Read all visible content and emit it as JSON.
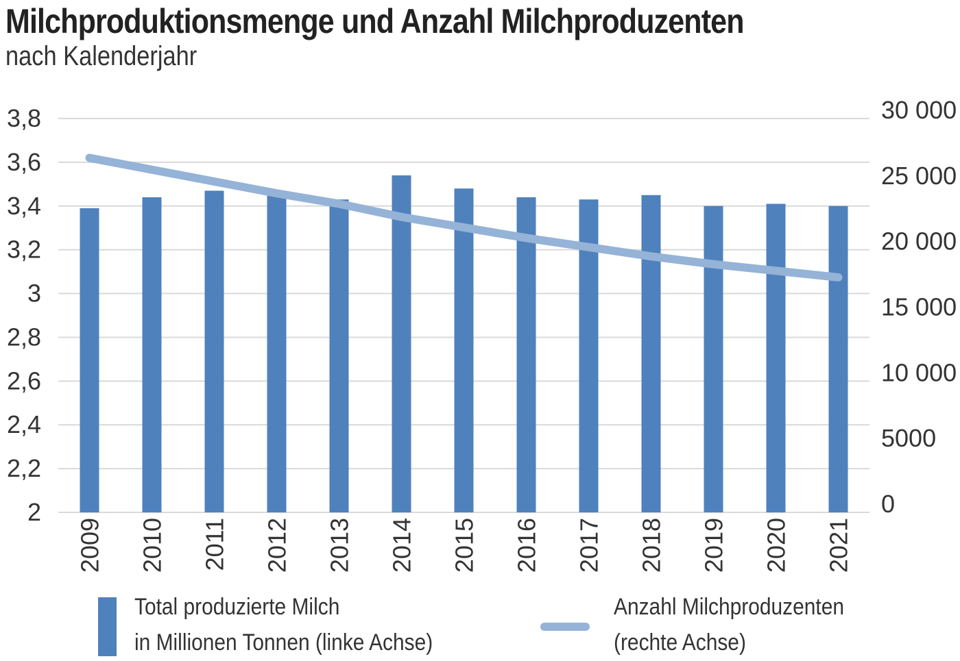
{
  "chart_data": {
    "type": "bar+line",
    "title": "Milchproduktionsmenge und Anzahl Milchproduzenten",
    "subtitle": "nach Kalenderjahr",
    "categories": [
      "2009",
      "2010",
      "2011",
      "2012",
      "2013",
      "2014",
      "2015",
      "2016",
      "2017",
      "2018",
      "2019",
      "2020",
      "2021"
    ],
    "series": [
      {
        "name": "Total produzierte Milch in Millionen Tonnen (linke Achse)",
        "type": "bar",
        "axis": "left",
        "color": "#4f81bd",
        "values": [
          3.39,
          3.44,
          3.47,
          3.45,
          3.43,
          3.54,
          3.48,
          3.44,
          3.43,
          3.45,
          3.4,
          3.41,
          3.4
        ]
      },
      {
        "name": "Anzahl Milchproduzenten (rechte Achse)",
        "type": "line",
        "axis": "right",
        "color": "#95b3d7",
        "values": [
          27000,
          26100,
          25200,
          24300,
          23500,
          22500,
          21700,
          20900,
          20200,
          19500,
          18900,
          18400,
          17900
        ]
      }
    ],
    "left_axis": {
      "ylim": [
        2,
        3.8
      ],
      "ticks": [
        "2",
        "2,2",
        "2,4",
        "2,6",
        "2,8",
        "3",
        "3,2",
        "3,4",
        "3,6",
        "3,8"
      ]
    },
    "right_axis": {
      "ylim": [
        0,
        30000
      ],
      "ticks": [
        "0",
        "5000",
        "10 000",
        "15 000",
        "20 000",
        "25 000",
        "30 000"
      ]
    },
    "grid": true,
    "legend_position": "bottom",
    "legend": {
      "bar_line1": "Total produzierte Milch",
      "bar_line2": "in Millionen Tonnen (linke Achse)",
      "line_line1": "Anzahl Milchproduzenten",
      "line_line2": "(rechte Achse)"
    }
  }
}
